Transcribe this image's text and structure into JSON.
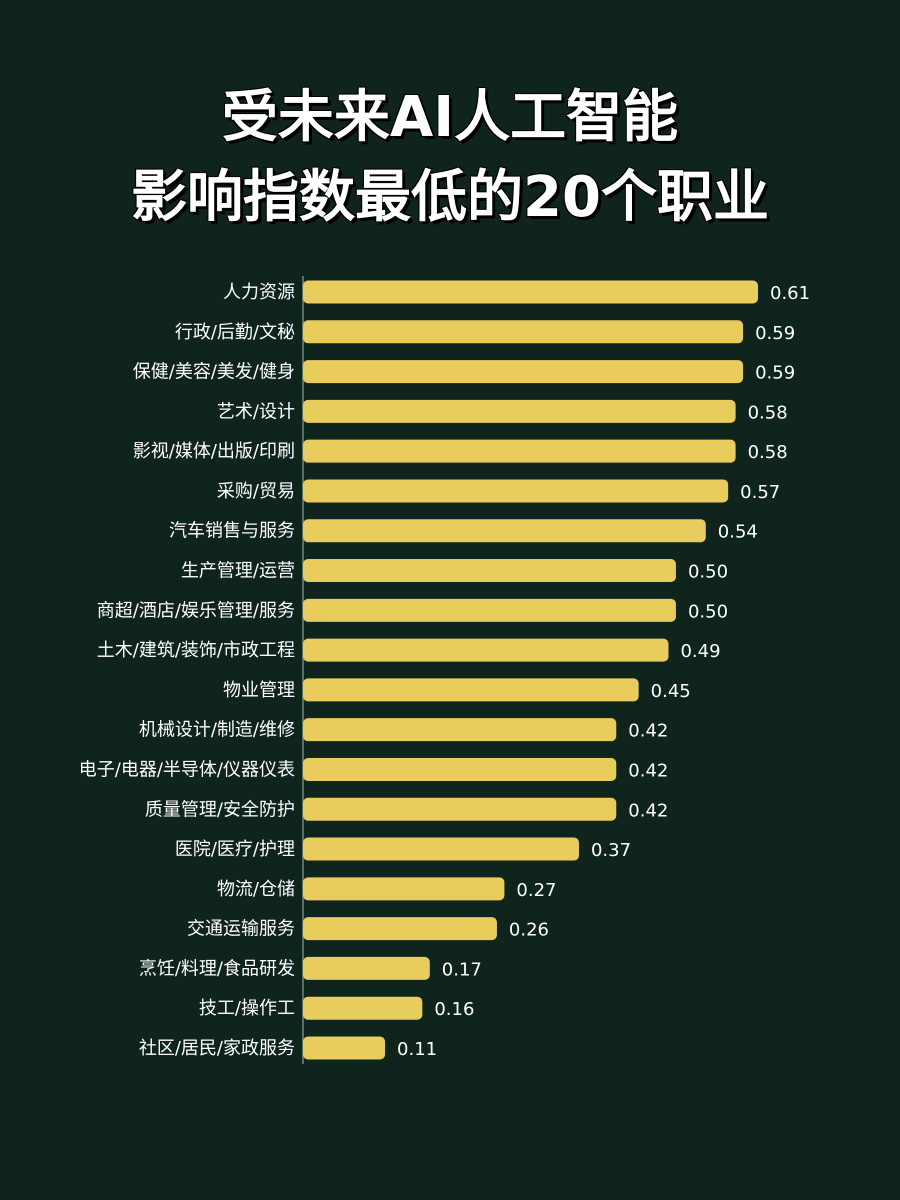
{
  "title": {
    "line1": "受未来AI人工智能",
    "line2": "影响指数最低的20个职业"
  },
  "colors": {
    "background": "#0f241d",
    "bar": "#e8cc5c",
    "text": "#ffffff"
  },
  "chart_data": {
    "type": "bar",
    "orientation": "horizontal",
    "categories": [
      "人力资源",
      "行政/后勤/文秘",
      "保健/美容/美发/健身",
      "艺术/设计",
      "影视/媒体/出版/印刷",
      "采购/贸易",
      "汽车销售与服务",
      "生产管理/运营",
      "商超/酒店/娱乐管理/服务",
      "土木/建筑/装饰/市政工程",
      "物业管理",
      "机械设计/制造/维修",
      "电子/电器/半导体/仪器仪表",
      "质量管理/安全防护",
      "医院/医疗/护理",
      "物流/仓储",
      "交通运输服务",
      "烹饪/料理/食品研发",
      "技工/操作工",
      "社区/居民/家政服务"
    ],
    "values": [
      0.61,
      0.59,
      0.59,
      0.58,
      0.58,
      0.57,
      0.54,
      0.5,
      0.5,
      0.49,
      0.45,
      0.42,
      0.42,
      0.42,
      0.37,
      0.27,
      0.26,
      0.17,
      0.16,
      0.11
    ],
    "value_labels": [
      "0.61",
      "0.59",
      "0.59",
      "0.58",
      "0.58",
      "0.57",
      "0.54",
      "0.50",
      "0.50",
      "0.49",
      "0.45",
      "0.42",
      "0.42",
      "0.42",
      "0.37",
      "0.27",
      "0.26",
      "0.17",
      "0.16",
      "0.11"
    ],
    "title": "受未来AI人工智能影响指数最低的20个职业",
    "xlabel": "",
    "ylabel": "",
    "xlim": [
      0,
      0.61
    ],
    "grid": false,
    "legend": "none"
  }
}
